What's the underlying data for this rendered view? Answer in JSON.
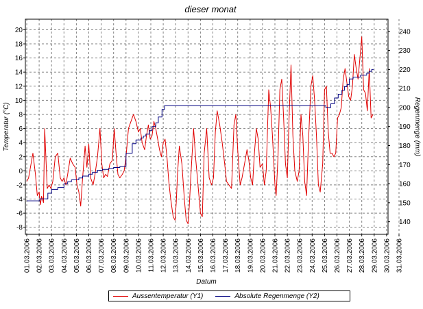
{
  "chart_data": {
    "type": "line",
    "title": "dieser monat",
    "xlabel": "Datum",
    "ylabel_left": "Temperatur (°C)",
    "ylabel_right": "Regenmenge (mm)",
    "ylim_left": [
      -9,
      21.5
    ],
    "ylim_right": [
      133.4,
      246.4
    ],
    "yticks_left": [
      -8,
      -6,
      -4,
      -2,
      0,
      2,
      4,
      6,
      8,
      10,
      12,
      14,
      16,
      18,
      20
    ],
    "yticks_right": [
      140,
      150,
      160,
      170,
      180,
      190,
      200,
      210,
      220,
      230,
      240
    ],
    "x_tick_labels": [
      "01.03.2006",
      "02.03.2006",
      "03.03.2006",
      "04.03.2006",
      "05.03.2006",
      "06.03.2006",
      "07.03.2006",
      "08.03.2006",
      "09.03.2006",
      "10.03.2006",
      "11.03.2006",
      "12.03.2006",
      "13.03.2006",
      "14.03.2006",
      "15.03.2006",
      "16.03.2006",
      "17.03.2006",
      "18.03.2006",
      "19.03.2006",
      "20.03.2006",
      "21.03.2006",
      "22.03.2006",
      "23.03.2006",
      "24.03.2006",
      "25.03.2006",
      "26.03.2006",
      "27.03.2006",
      "28.03.2006",
      "29.03.2006",
      "30.03.2006",
      "31.03.2006"
    ],
    "grid": true,
    "legend_position": "bottom",
    "series": [
      {
        "name": "Aussentemperatur (Y1)",
        "axis": "left",
        "color": "#e00000",
        "x": [
          0.0,
          0.15,
          0.3,
          0.5,
          0.7,
          0.85,
          1.0,
          1.1,
          1.2,
          1.35,
          1.45,
          1.55,
          1.65,
          1.8,
          1.95,
          2.1,
          2.3,
          2.5,
          2.7,
          2.85,
          3.0,
          3.15,
          3.3,
          3.5,
          3.7,
          3.9,
          4.05,
          4.2,
          4.35,
          4.5,
          4.7,
          4.85,
          5.0,
          5.15,
          5.35,
          5.5,
          5.7,
          5.9,
          6.05,
          6.2,
          6.35,
          6.5,
          6.7,
          6.9,
          7.05,
          7.2,
          7.35,
          7.5,
          7.7,
          7.85,
          8.0,
          8.2,
          8.4,
          8.6,
          8.8,
          9.0,
          9.15,
          9.3,
          9.5,
          9.65,
          9.8,
          9.95,
          10.1,
          10.25,
          10.4,
          10.55,
          10.7,
          10.85,
          11.0,
          11.15,
          11.3,
          11.45,
          11.6,
          11.8,
          11.95,
          12.05,
          12.15,
          12.3,
          12.5,
          12.7,
          12.85,
          13.0,
          13.1,
          13.25,
          13.45,
          13.6,
          13.8,
          14.0,
          14.15,
          14.3,
          14.5,
          14.7,
          14.9,
          15.05,
          15.2,
          15.35,
          15.55,
          15.75,
          15.95,
          16.1,
          16.3,
          16.5,
          16.7,
          16.85,
          17.0,
          17.2,
          17.35,
          17.55,
          17.75,
          17.9,
          18.05,
          18.2,
          18.35,
          18.5,
          18.65,
          18.8,
          19.0,
          19.15,
          19.3,
          19.5,
          19.65,
          19.8,
          20.0,
          20.1,
          20.25,
          20.4,
          20.55,
          20.7,
          20.85,
          21.0,
          21.15,
          21.3,
          21.45,
          21.6,
          21.8,
          21.95,
          22.1,
          22.25,
          22.4,
          22.55,
          22.7,
          22.9,
          23.05,
          23.2,
          23.35,
          23.5,
          23.65,
          23.85,
          24.0,
          24.15,
          24.3,
          24.45,
          24.6,
          24.75,
          24.9,
          25.05,
          25.2,
          25.35,
          25.5,
          25.65,
          25.8,
          25.95,
          26.1,
          26.25,
          26.4,
          26.55,
          26.7,
          26.85,
          27.0,
          27.15,
          27.3,
          27.45,
          27.6,
          27.75,
          27.9
        ],
        "y": [
          -1.5,
          -1.0,
          0.5,
          2.5,
          -0.5,
          -3.5,
          -3.0,
          -4.8,
          -3.6,
          -4.5,
          6.0,
          1.5,
          -2.5,
          -2.0,
          -2.5,
          -1.5,
          2.0,
          2.5,
          -1.0,
          -1.5,
          -1.0,
          -2.0,
          -0.5,
          1.8,
          1.0,
          0.5,
          -2.0,
          -3.0,
          -5.0,
          -1.0,
          3.5,
          0.5,
          3.8,
          -1.0,
          -2.0,
          -0.5,
          2.0,
          6.0,
          1.0,
          -1.0,
          -0.5,
          -0.8,
          1.0,
          1.5,
          6.0,
          2.5,
          -0.5,
          -1.0,
          -0.5,
          0.0,
          2.0,
          6.0,
          7.0,
          8.0,
          7.0,
          5.5,
          6.0,
          4.0,
          3.0,
          5.0,
          6.5,
          4.5,
          5.0,
          7.0,
          6.0,
          4.5,
          3.0,
          2.0,
          4.0,
          4.5,
          2.0,
          -1.5,
          -4.0,
          -6.5,
          -7.0,
          -4.5,
          -0.5,
          3.5,
          1.0,
          -4.0,
          -7.0,
          -7.5,
          -5.0,
          0.0,
          6.0,
          2.0,
          -2.0,
          -6.0,
          -6.5,
          2.5,
          6.0,
          -1.0,
          -2.0,
          -1.0,
          5.5,
          8.5,
          6.5,
          4.0,
          1.0,
          -1.5,
          -2.0,
          -2.5,
          6.5,
          8.0,
          3.0,
          -2.0,
          -1.0,
          1.0,
          3.0,
          1.5,
          -1.0,
          -2.0,
          2.5,
          6.0,
          4.5,
          0.5,
          1.0,
          -2.0,
          0.0,
          11.5,
          9.0,
          5.0,
          -2.0,
          -3.5,
          2.0,
          11.5,
          13.0,
          7.5,
          1.0,
          -1.0,
          8.0,
          15.0,
          5.0,
          0.0,
          -1.5,
          0.0,
          8.0,
          5.0,
          -1.5,
          -3.5,
          4.0,
          12.0,
          13.5,
          10.0,
          5.0,
          -2.0,
          -3.0,
          1.0,
          11.5,
          12.0,
          5.5,
          2.5,
          2.5,
          2.0,
          2.5,
          7.5,
          8.0,
          9.0,
          13.0,
          14.5,
          12.5,
          10.5,
          10.0,
          12.0,
          16.5,
          14.5,
          13.0,
          16.0,
          19.0,
          11.5,
          11.0,
          8.5,
          14.5,
          7.5,
          8.0
        ]
      },
      {
        "name": "Absolute Regenmenge (Y2)",
        "axis": "right",
        "color": "#000080",
        "x": [
          0,
          1.05,
          1.05,
          1.7,
          1.7,
          2.0,
          2.0,
          2.5,
          2.5,
          3.0,
          3.0,
          3.3,
          3.3,
          3.6,
          3.6,
          4.2,
          4.2,
          4.5,
          4.5,
          5.0,
          5.0,
          5.3,
          5.3,
          5.7,
          5.7,
          6.1,
          6.1,
          6.6,
          6.6,
          7.0,
          7.0,
          7.5,
          7.5,
          8.0,
          8.0,
          8.5,
          8.5,
          8.8,
          8.8,
          9.2,
          9.2,
          9.4,
          9.4,
          9.6,
          9.6,
          9.9,
          9.9,
          10.1,
          10.1,
          10.4,
          10.4,
          10.6,
          10.6,
          10.9,
          10.9,
          11.1,
          11.1,
          24.1,
          24.1,
          24.5,
          24.5,
          24.8,
          24.8,
          25.1,
          25.1,
          25.4,
          25.4,
          25.6,
          25.6,
          25.8,
          25.8,
          26.0,
          26.0,
          26.3,
          26.3,
          26.9,
          26.9,
          27.4,
          27.4,
          27.6,
          27.6,
          27.8,
          27.8,
          27.95
        ],
        "y": [
          151,
          151,
          152,
          152,
          155,
          155,
          157,
          157,
          158,
          158,
          160,
          160,
          161,
          161,
          162,
          162,
          163,
          163,
          164,
          164,
          165,
          165,
          166,
          166,
          167,
          167,
          167.5,
          167.5,
          168,
          168,
          168.5,
          168.5,
          169,
          169,
          176,
          176,
          181,
          181,
          183,
          183,
          184,
          184,
          185,
          185,
          186,
          186,
          188,
          188,
          190,
          190,
          192,
          192,
          195,
          195,
          199,
          199,
          201,
          201,
          200,
          200,
          202,
          202,
          205,
          205,
          207,
          207,
          209,
          209,
          211,
          211,
          212,
          212,
          215,
          215,
          216,
          216,
          217,
          217,
          218,
          218,
          219,
          219,
          220,
          220
        ]
      }
    ]
  }
}
